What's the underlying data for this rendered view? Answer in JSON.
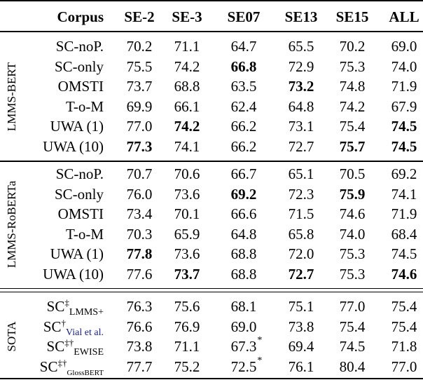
{
  "headers": [
    "Corpus",
    "SE-2",
    "SE-3",
    "SE07",
    "SE13",
    "SE15",
    "ALL"
  ],
  "groups": [
    {
      "label": "LMMS-BERT",
      "rows": [
        {
          "method": "SC-noP.",
          "values": [
            "70.2",
            "71.1",
            "64.7",
            "65.5",
            "70.2",
            "69.0"
          ],
          "bold": []
        },
        {
          "method": "SC-only",
          "values": [
            "75.5",
            "74.2",
            "66.8",
            "72.9",
            "75.3",
            "74.0"
          ],
          "bold": [
            2
          ]
        },
        {
          "method": "OMSTI",
          "values": [
            "73.7",
            "68.8",
            "63.5",
            "73.2",
            "74.8",
            "71.9"
          ],
          "bold": [
            3
          ]
        },
        {
          "method": "T-o-M",
          "values": [
            "69.9",
            "66.1",
            "62.4",
            "64.8",
            "74.2",
            "67.9"
          ],
          "bold": []
        },
        {
          "method": "UWA (1)",
          "values": [
            "77.0",
            "74.2",
            "66.2",
            "73.1",
            "75.4",
            "74.5"
          ],
          "bold": [
            1,
            5
          ]
        },
        {
          "method": "UWA (10)",
          "values": [
            "77.3",
            "74.1",
            "66.2",
            "72.7",
            "75.7",
            "74.5"
          ],
          "bold": [
            0,
            4,
            5
          ]
        }
      ]
    },
    {
      "label": "LMMS-RoBERTa",
      "rows": [
        {
          "method": "SC-noP.",
          "values": [
            "70.7",
            "70.6",
            "66.7",
            "65.1",
            "70.5",
            "69.2"
          ],
          "bold": []
        },
        {
          "method": "SC-only",
          "values": [
            "76.0",
            "73.6",
            "69.2",
            "72.3",
            "75.9",
            "74.1"
          ],
          "bold": [
            2,
            4
          ]
        },
        {
          "method": "OMSTI",
          "values": [
            "73.4",
            "70.1",
            "66.6",
            "71.5",
            "74.6",
            "71.9"
          ],
          "bold": []
        },
        {
          "method": "T-o-M",
          "values": [
            "70.3",
            "65.9",
            "64.8",
            "65.8",
            "74.0",
            "68.4"
          ],
          "bold": []
        },
        {
          "method": "UWA (1)",
          "values": [
            "77.8",
            "73.6",
            "68.8",
            "72.0",
            "75.3",
            "74.5"
          ],
          "bold": [
            0
          ]
        },
        {
          "method": "UWA (10)",
          "values": [
            "77.6",
            "73.7",
            "68.8",
            "72.7",
            "75.3",
            "74.6"
          ],
          "bold": [
            1,
            3,
            5
          ]
        }
      ]
    },
    {
      "label": "SOTA",
      "rows": [
        {
          "method": "SC",
          "sup": "‡",
          "sub": "LMMS+",
          "values": [
            "76.3",
            "75.6",
            "68.1",
            "75.1",
            "77.0",
            "75.4"
          ],
          "bold": []
        },
        {
          "method": "SC",
          "sup": "†",
          "sub": "Vial et al.",
          "values": [
            "76.6",
            "76.9",
            "69.0",
            "73.8",
            "75.4",
            "75.4"
          ],
          "bold": []
        },
        {
          "method": "SC",
          "sup": "‡†",
          "sub": "EWISE",
          "values": [
            "73.8",
            "71.1",
            "67.3",
            "69.4",
            "74.5",
            "71.8"
          ],
          "bold": [],
          "star_col": 2
        },
        {
          "method": "SC",
          "sup": "‡†",
          "sub": "GlossBERT",
          "values": [
            "77.7",
            "75.2",
            "72.5",
            "76.1",
            "80.4",
            "77.0"
          ],
          "bold": [],
          "star_col": 2
        }
      ]
    }
  ],
  "star_mark": "*"
}
